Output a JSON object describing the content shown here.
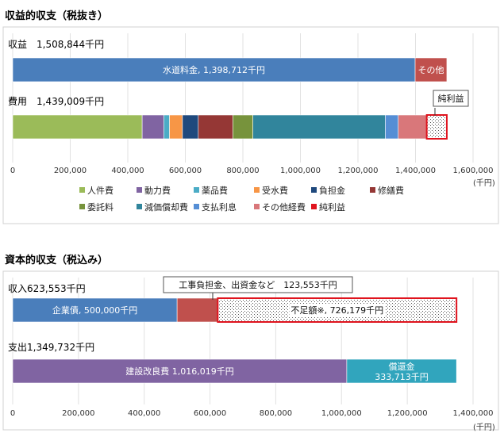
{
  "chart_data": [
    {
      "type": "bar",
      "title": "収益的収支（税抜き）",
      "unit": "(千円)",
      "xlim": [
        0,
        1600000
      ],
      "ticks": [
        "0",
        "200,000",
        "400,000",
        "600,000",
        "800,000",
        "1,000,000",
        "1,200,000",
        "1,400,000",
        "1,600,000"
      ],
      "bars": [
        {
          "label": "収益　1,508,844千円",
          "segments": [
            {
              "name": "水道料金",
              "value": 1398712,
              "color": "#4a7ebb",
              "label": "水道料金, 1,398,712千円"
            },
            {
              "name": "その他",
              "value": 110132,
              "color": "#c0504d",
              "label": "その他"
            }
          ]
        },
        {
          "label": "費用　1,439,009千円",
          "segments": [
            {
              "name": "人件費",
              "value": 450000,
              "color": "#9bbb59"
            },
            {
              "name": "動力費",
              "value": 75000,
              "color": "#8064a2"
            },
            {
              "name": "薬品費",
              "value": 20000,
              "color": "#4bacc6"
            },
            {
              "name": "受水費",
              "value": 45000,
              "color": "#f79646"
            },
            {
              "name": "負担金",
              "value": 55000,
              "color": "#1f497d"
            },
            {
              "name": "修繕費",
              "value": 120000,
              "color": "#953735"
            },
            {
              "name": "委託料",
              "value": 70000,
              "color": "#77933c"
            },
            {
              "name": "減価償却費",
              "value": 460000,
              "color": "#31859c"
            },
            {
              "name": "支払利息",
              "value": 45000,
              "color": "#558ed5"
            },
            {
              "name": "その他経費",
              "value": 99009,
              "color": "#d9777a"
            },
            {
              "name": "純利益",
              "value": 69835,
              "color": "#ffffff",
              "hatch": true
            }
          ],
          "callout": "純利益"
        }
      ],
      "legend": [
        "人件費",
        "動力費",
        "薬品費",
        "受水費",
        "負担金",
        "修繕費",
        "委託料",
        "減価償却費",
        "支払利息",
        "その他経費",
        "純利益"
      ]
    },
    {
      "type": "bar",
      "title": "資本的収支（税込み）",
      "unit": "(千円)",
      "xlim": [
        0,
        1400000
      ],
      "ticks": [
        "0",
        "200,000",
        "400,000",
        "600,000",
        "800,000",
        "1,000,000",
        "1,200,000",
        "1,400,000"
      ],
      "bars": [
        {
          "label": "収入623,553千円",
          "segments": [
            {
              "name": "企業債",
              "value": 500000,
              "color": "#4a7ebb",
              "label": "企業債, 500,000千円"
            },
            {
              "name": "工事負担金、出資金など",
              "value": 123553,
              "color": "#c0504d"
            },
            {
              "name": "不足額※",
              "value": 726179,
              "color": "#ffffff",
              "hatch": true,
              "label": "不足額※, 726,179千円"
            }
          ],
          "callout": "工事負担金、出資金など　123,553千円"
        },
        {
          "label": "支出1,349,732千円",
          "segments": [
            {
              "name": "建設改良費",
              "value": 1016019,
              "color": "#8064a2",
              "label": "建設改良費 1,016,019千円"
            },
            {
              "name": "償還金",
              "value": 333713,
              "color": "#31a5bd",
              "label": "償還金",
              "label2": "333,713千円"
            }
          ]
        }
      ]
    }
  ]
}
